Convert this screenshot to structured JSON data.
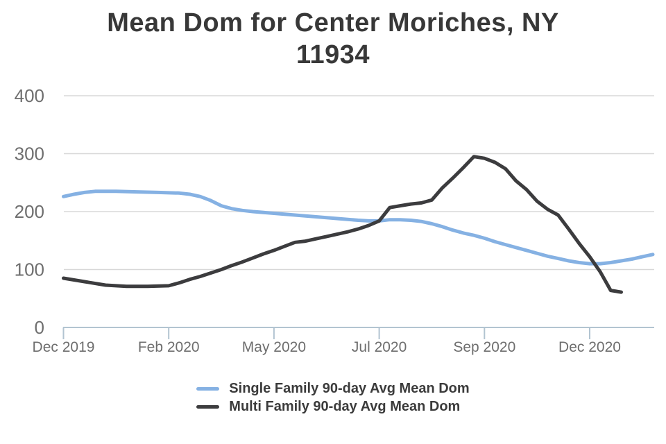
{
  "chart_data": {
    "type": "line",
    "title": "Mean Dom for Center Moriches, NY 11934",
    "x_axis": {
      "unit": "weekly points, ticks every 10 weeks",
      "ticks": [
        {
          "pos": 0,
          "label": "Dec 2019"
        },
        {
          "pos": 10,
          "label": "Feb 2020"
        },
        {
          "pos": 20,
          "label": "May 2020"
        },
        {
          "pos": 30,
          "label": "Jul 2020"
        },
        {
          "pos": 40,
          "label": "Sep 2020"
        },
        {
          "pos": 50,
          "label": "Dec 2020"
        }
      ]
    },
    "y_axis": {
      "ticks": [
        0,
        100,
        200,
        300,
        400
      ],
      "range": [
        0,
        400
      ],
      "grid": true
    },
    "legend_position": "bottom",
    "style": {
      "gridline_color": "#d8d8d8",
      "axis_color": "#b2c4d1",
      "axis_label_color": "#6e6e6e",
      "title_color": "#383838",
      "background": "#ffffff"
    },
    "series": [
      {
        "name": "Single Family 90-day Avg Mean Dom",
        "color": "#85b1e3",
        "points": [
          [
            0,
            226
          ],
          [
            1,
            230
          ],
          [
            2,
            233
          ],
          [
            3,
            235
          ],
          [
            5,
            235
          ],
          [
            7,
            234
          ],
          [
            9,
            233
          ],
          [
            11,
            232
          ],
          [
            12,
            230
          ],
          [
            13,
            226
          ],
          [
            14,
            219
          ],
          [
            15,
            210
          ],
          [
            16,
            205
          ],
          [
            17,
            202
          ],
          [
            18,
            200
          ],
          [
            20,
            197
          ],
          [
            22,
            194
          ],
          [
            24,
            191
          ],
          [
            26,
            188
          ],
          [
            28,
            185
          ],
          [
            29,
            184
          ],
          [
            30,
            184
          ],
          [
            31,
            186
          ],
          [
            32,
            186
          ],
          [
            33,
            185
          ],
          [
            34,
            183
          ],
          [
            35,
            179
          ],
          [
            36,
            174
          ],
          [
            37,
            168
          ],
          [
            38,
            163
          ],
          [
            39,
            159
          ],
          [
            40,
            154
          ],
          [
            41,
            148
          ],
          [
            42,
            143
          ],
          [
            43,
            138
          ],
          [
            44,
            133
          ],
          [
            45,
            128
          ],
          [
            46,
            123
          ],
          [
            47,
            119
          ],
          [
            48,
            115
          ],
          [
            49,
            112
          ],
          [
            50,
            110
          ],
          [
            51,
            110
          ],
          [
            52,
            112
          ],
          [
            53,
            115
          ],
          [
            54,
            118
          ],
          [
            55,
            122
          ],
          [
            56,
            126
          ]
        ]
      },
      {
        "name": "Multi Family 90-day Avg Mean Dom",
        "color": "#3c3c3e",
        "points": [
          [
            0,
            85
          ],
          [
            2,
            79
          ],
          [
            4,
            73
          ],
          [
            6,
            71
          ],
          [
            8,
            71
          ],
          [
            10,
            72
          ],
          [
            11,
            77
          ],
          [
            12,
            83
          ],
          [
            13,
            88
          ],
          [
            14,
            94
          ],
          [
            15,
            100
          ],
          [
            16,
            107
          ],
          [
            17,
            113
          ],
          [
            18,
            120
          ],
          [
            19,
            127
          ],
          [
            20,
            133
          ],
          [
            21,
            140
          ],
          [
            22,
            147
          ],
          [
            23,
            149
          ],
          [
            24,
            153
          ],
          [
            25,
            157
          ],
          [
            26,
            161
          ],
          [
            27,
            165
          ],
          [
            28,
            170
          ],
          [
            29,
            176
          ],
          [
            30,
            184
          ],
          [
            31,
            207
          ],
          [
            32,
            210
          ],
          [
            33,
            213
          ],
          [
            34,
            215
          ],
          [
            35,
            220
          ],
          [
            36,
            241
          ],
          [
            37,
            258
          ],
          [
            38,
            276
          ],
          [
            39,
            295
          ],
          [
            40,
            292
          ],
          [
            41,
            285
          ],
          [
            42,
            274
          ],
          [
            43,
            253
          ],
          [
            44,
            238
          ],
          [
            45,
            218
          ],
          [
            46,
            204
          ],
          [
            47,
            194
          ],
          [
            48,
            170
          ],
          [
            49,
            145
          ],
          [
            50,
            122
          ],
          [
            51,
            96
          ],
          [
            52,
            64
          ],
          [
            53,
            61
          ]
        ]
      }
    ]
  }
}
